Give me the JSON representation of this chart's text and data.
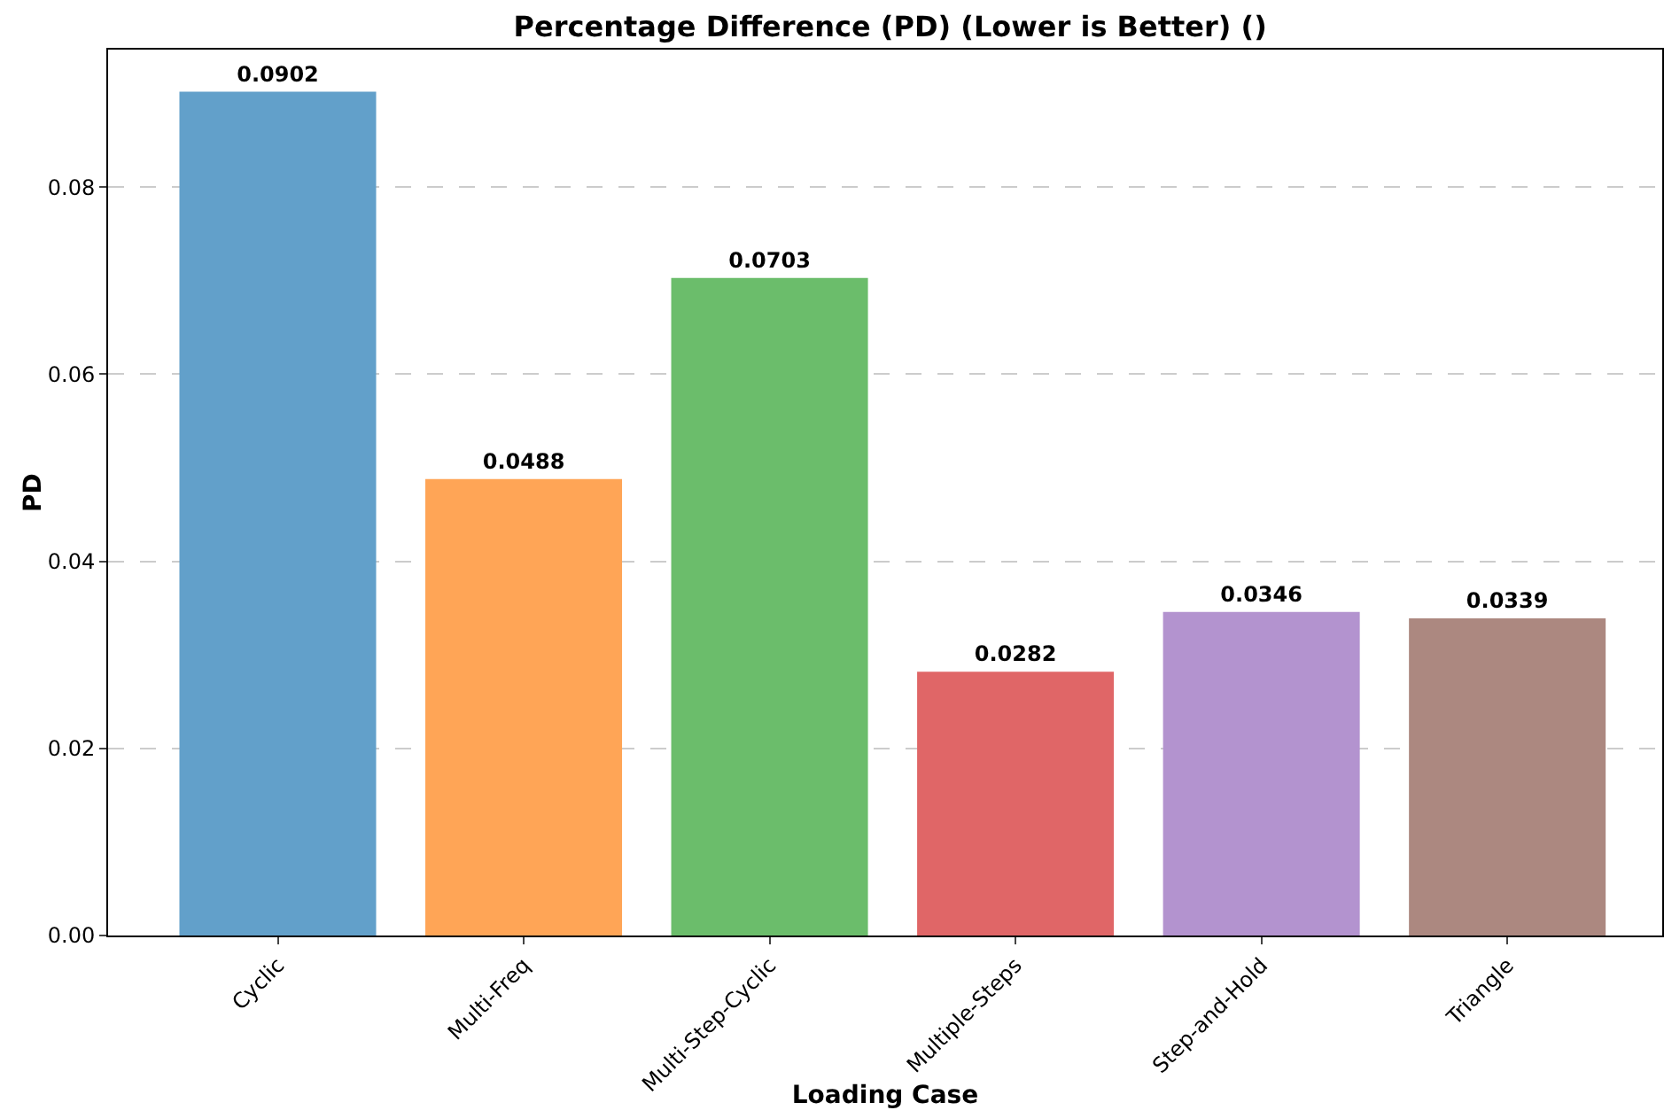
{
  "chart_data": {
    "type": "bar",
    "title": "Percentage Difference (PD) (Lower is Better) ()",
    "xlabel": "Loading Case",
    "ylabel": "PD",
    "categories": [
      "Cyclic",
      "Multi-Freq",
      "Multi-Step-Cyclic",
      "Multiple-Steps",
      "Step-and-Hold",
      "Triangle"
    ],
    "values": [
      0.0902,
      0.0488,
      0.0703,
      0.0282,
      0.0346,
      0.0339
    ],
    "colors": [
      "#62a0ca",
      "#ffa556",
      "#6bbd6b",
      "#e06667",
      "#b393cf",
      "#ac8880"
    ],
    "ylim": [
      0,
      0.0947
    ],
    "yticks": [
      {
        "value": 0,
        "label": "0.00"
      },
      {
        "value": 0.02,
        "label": "0.02"
      },
      {
        "value": 0.04,
        "label": "0.04"
      },
      {
        "value": 0.06,
        "label": "0.06"
      },
      {
        "value": 0.08,
        "label": "0.08"
      }
    ],
    "grid": "y",
    "data_labels": true,
    "legend": false
  }
}
